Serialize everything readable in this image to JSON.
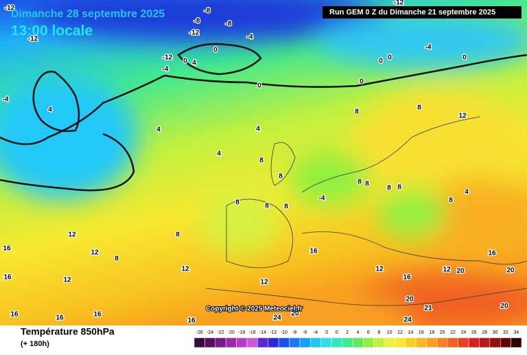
{
  "header": {
    "date": "Dimanche 28 septembre 2025",
    "time": "13:00 locale",
    "run": "Run GEM 0 Z du Dimanche 21 septembre 2025"
  },
  "footer": {
    "parameter": "Température 850hPa",
    "lead": "(+ 180h)",
    "copyright": "Copyright © 2025 Meteociel.fr"
  },
  "contour_labels": [
    -12,
    -8,
    -8,
    -8,
    -12,
    -4,
    -12,
    -12,
    -4,
    0,
    4,
    0,
    -4,
    -12,
    0,
    0,
    0,
    0,
    0,
    -4,
    4,
    4,
    4,
    4,
    8,
    8,
    12,
    8,
    8,
    8,
    8,
    8,
    8,
    -4,
    8,
    8,
    8,
    4,
    8,
    12,
    12,
    8,
    8,
    12,
    12,
    16,
    16,
    12,
    16,
    12,
    16,
    20,
    21,
    24,
    24,
    20,
    16,
    16,
    16,
    16,
    20,
    20,
    12,
    16,
    20
  ],
  "colorbar": {
    "values": [
      -26,
      -24,
      -22,
      -20,
      -18,
      -16,
      -14,
      -12,
      -10,
      -8,
      -6,
      -4,
      -2,
      0,
      2,
      4,
      6,
      8,
      10,
      12,
      14,
      16,
      18,
      20,
      22,
      24,
      26,
      28,
      30,
      32,
      34
    ],
    "colors": [
      "#3a0a3a",
      "#5a0f5e",
      "#7a1a86",
      "#9a2aa8",
      "#b43cc6",
      "#c85ad8",
      "#5a2ad0",
      "#2a2ad8",
      "#1a50e8",
      "#1a78f0",
      "#1aa0f8",
      "#20c8f8",
      "#30e0e8",
      "#30e8c0",
      "#40e890",
      "#60e860",
      "#90f040",
      "#c0f040",
      "#e8f040",
      "#f8e830",
      "#f8d020",
      "#f8b820",
      "#f8a020",
      "#f88020",
      "#f06020",
      "#e84020",
      "#d82020",
      "#b81818",
      "#901010",
      "#600808",
      "#300000"
    ]
  }
}
